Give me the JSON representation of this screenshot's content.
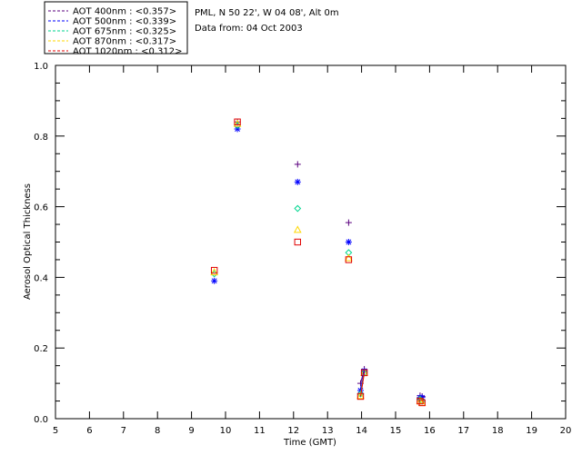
{
  "header": {
    "location": "PML, N 50 22', W 04 08', Alt 0m",
    "data_from": "Data from: 04 Oct 2003"
  },
  "chart_data": {
    "type": "scatter",
    "xlabel": "Time (GMT)",
    "ylabel": "Aerosol Optical Thickness",
    "xlim": [
      5,
      20
    ],
    "ylim": [
      0,
      1.0
    ],
    "xticks": [
      "5",
      "6",
      "7",
      "8",
      "9",
      "10",
      "11",
      "12",
      "13",
      "14",
      "15",
      "16",
      "17",
      "18",
      "19",
      "20"
    ],
    "yticks": [
      "0.0",
      "0.2",
      "0.4",
      "0.6",
      "0.8",
      "1.0"
    ],
    "grid": false,
    "legend_position": "top-left outside",
    "series": [
      {
        "name": "AOT  400nm : <0.357>",
        "color": "#5a007f",
        "marker": "plus",
        "points": [
          [
            10.35,
            0.84
          ],
          [
            12.12,
            0.72
          ],
          [
            13.62,
            0.555
          ],
          [
            13.97,
            0.1
          ],
          [
            14.08,
            0.14
          ],
          [
            15.72,
            0.065
          ],
          [
            15.78,
            0.063
          ]
        ]
      },
      {
        "name": "AOT  500nm : <0.339>",
        "color": "#0000ff",
        "marker": "asterisk",
        "points": [
          [
            9.67,
            0.39
          ],
          [
            10.35,
            0.82
          ],
          [
            12.12,
            0.67
          ],
          [
            13.62,
            0.5
          ],
          [
            13.97,
            0.08
          ],
          [
            14.08,
            0.135
          ],
          [
            15.72,
            0.06
          ],
          [
            15.78,
            0.06
          ]
        ]
      },
      {
        "name": "AOT  675nm : <0.325>",
        "color": "#00d68f",
        "marker": "diamond",
        "points": [
          [
            9.67,
            0.41
          ],
          [
            10.35,
            0.83
          ],
          [
            12.12,
            0.595
          ],
          [
            13.62,
            0.47
          ],
          [
            13.97,
            0.07
          ],
          [
            14.08,
            0.13
          ],
          [
            15.72,
            0.055
          ],
          [
            15.78,
            0.05
          ]
        ]
      },
      {
        "name": "AOT  870nm : <0.317>",
        "color": "#ffd700",
        "marker": "triangle",
        "points": [
          [
            9.67,
            0.415
          ],
          [
            10.35,
            0.835
          ],
          [
            12.12,
            0.535
          ],
          [
            13.62,
            0.455
          ],
          [
            13.97,
            0.065
          ],
          [
            14.08,
            0.13
          ],
          [
            15.72,
            0.05
          ],
          [
            15.78,
            0.045
          ]
        ]
      },
      {
        "name": "AOT 1020nm : <0.312>",
        "color": "#e00000",
        "marker": "square",
        "points": [
          [
            9.67,
            0.42
          ],
          [
            10.35,
            0.84
          ],
          [
            12.12,
            0.5
          ],
          [
            13.62,
            0.45
          ],
          [
            13.97,
            0.063
          ],
          [
            14.08,
            0.13
          ],
          [
            15.72,
            0.05
          ],
          [
            15.78,
            0.045
          ]
        ]
      }
    ]
  }
}
